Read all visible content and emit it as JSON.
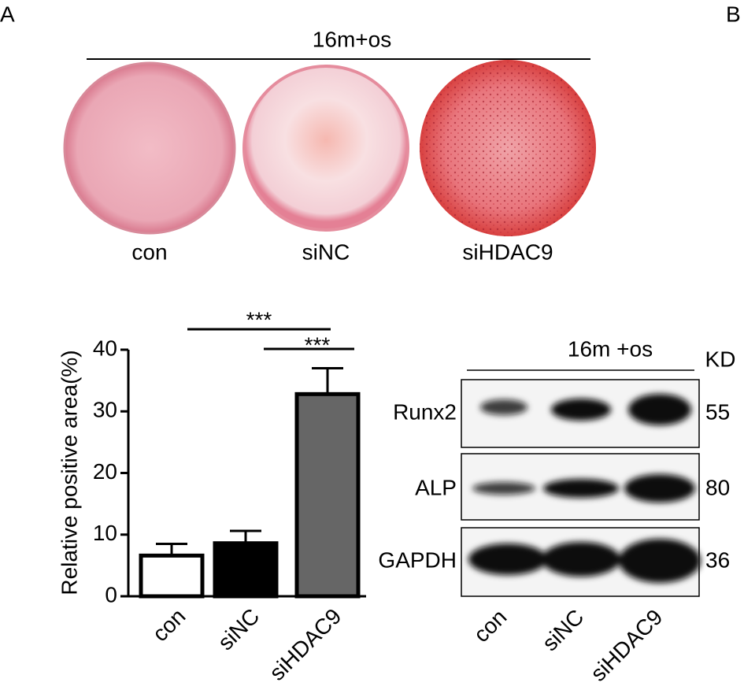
{
  "panel_labels": [
    "A",
    "B"
  ],
  "plates": {
    "title": "16m+os",
    "labels": [
      "con",
      "siNC",
      "siHDAC9"
    ]
  },
  "chart_data": {
    "type": "bar",
    "y_label": "Relative positive area(%)",
    "categories": [
      "con",
      "siNC",
      "siHDAC9"
    ],
    "values": [
      6.6,
      8.6,
      32.8
    ],
    "errors": [
      1.9,
      2.0,
      4.2
    ],
    "colors": [
      "#ffffff",
      "#000000",
      "#666666"
    ],
    "ylim": [
      0,
      40
    ],
    "yticks": [
      0,
      10,
      20,
      30,
      40
    ],
    "annotations": [
      "***",
      "***"
    ]
  },
  "blot": {
    "title": "16m +os",
    "unit": "KD",
    "bands": [
      {
        "name": "Runx2",
        "kd": 55
      },
      {
        "name": "ALP",
        "kd": 80
      },
      {
        "name": "GAPDH",
        "kd": 36
      }
    ],
    "lanes": [
      "con",
      "siNC",
      "siHDAC9"
    ]
  }
}
